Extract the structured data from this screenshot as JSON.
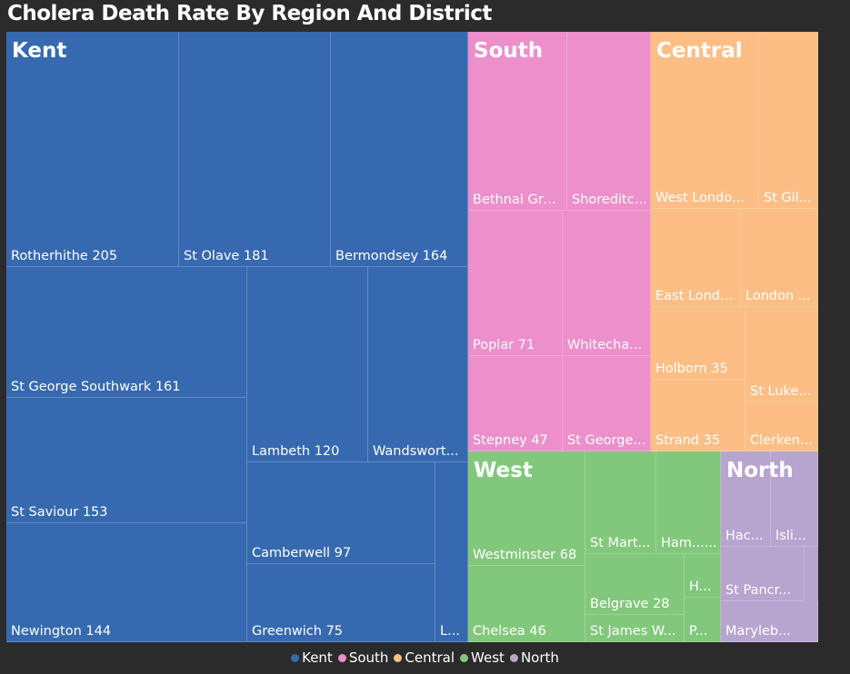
{
  "title": "Cholera Death Rate By Region And District",
  "colors": {
    "Kent": "#3669b0",
    "South": "#ec8fca",
    "Central": "#fdbe85",
    "West": "#82c87c",
    "North": "#b7a4cf"
  },
  "chart_data": {
    "type": "treemap",
    "title": "Cholera Death Rate By Region And District",
    "legend": [
      "Kent",
      "South",
      "Central",
      "West",
      "North"
    ],
    "legend_position": "bottom-center",
    "groups": [
      {
        "name": "Kent",
        "items": [
          {
            "name": "Rotherhithe",
            "value": 205,
            "label": "Rotherhithe 205"
          },
          {
            "name": "St Olave",
            "value": 181,
            "label": "St Olave 181"
          },
          {
            "name": "Bermondsey",
            "value": 164,
            "label": "Bermondsey 164"
          },
          {
            "name": "St George Southwark",
            "value": 161,
            "label": "St George Southwark 161"
          },
          {
            "name": "St Saviour",
            "value": 153,
            "label": "St Saviour 153"
          },
          {
            "name": "Newington",
            "value": 144,
            "label": "Newington 144"
          },
          {
            "name": "Lambeth",
            "value": 120,
            "label": "Lambeth 120"
          },
          {
            "name": "Wandsworth",
            "value": null,
            "label": "Wandswort..."
          },
          {
            "name": "Camberwell",
            "value": 97,
            "label": "Camberwell 97"
          },
          {
            "name": "Greenwich",
            "value": 75,
            "label": "Greenwich 75"
          },
          {
            "name": "Lewisham",
            "value": null,
            "label": "L..."
          }
        ]
      },
      {
        "name": "South",
        "items": [
          {
            "name": "Bethnal Green",
            "value": null,
            "label": "Bethnal Gre..."
          },
          {
            "name": "Shoreditch",
            "value": null,
            "label": "Shoreditc..."
          },
          {
            "name": "Poplar",
            "value": 71,
            "label": "Poplar 71"
          },
          {
            "name": "Whitechapel",
            "value": null,
            "label": "Whitecha..."
          },
          {
            "name": "Stepney",
            "value": 47,
            "label": "Stepney 47"
          },
          {
            "name": "St George in the East",
            "value": null,
            "label": "St George..."
          }
        ]
      },
      {
        "name": "Central",
        "items": [
          {
            "name": "West London",
            "value": null,
            "label": "West Londo..."
          },
          {
            "name": "St Giles",
            "value": null,
            "label": "St Gil..."
          },
          {
            "name": "East London",
            "value": null,
            "label": "East Lond..."
          },
          {
            "name": "London City",
            "value": null,
            "label": "London ..."
          },
          {
            "name": "Holborn",
            "value": 35,
            "label": "Holborn 35"
          },
          {
            "name": "St Luke",
            "value": null,
            "label": "St Luke..."
          },
          {
            "name": "Strand",
            "value": 35,
            "label": "Strand 35"
          },
          {
            "name": "Clerkenwell",
            "value": null,
            "label": "Clerken..."
          }
        ]
      },
      {
        "name": "West",
        "items": [
          {
            "name": "Westminster",
            "value": 68,
            "label": "Westminster 68"
          },
          {
            "name": "St Martin",
            "value": null,
            "label": "St Mart..."
          },
          {
            "name": "Hammersmith",
            "value": null,
            "label": "Ham......"
          },
          {
            "name": "Chelsea",
            "value": 46,
            "label": "Chelsea 46"
          },
          {
            "name": "Belgrave",
            "value": 28,
            "label": "Belgrave 28"
          },
          {
            "name": "Hampstead",
            "value": null,
            "label": "H..."
          },
          {
            "name": "St James Westminster",
            "value": null,
            "label": "St James W..."
          },
          {
            "name": "Paddington",
            "value": null,
            "label": "P..."
          }
        ]
      },
      {
        "name": "North",
        "items": [
          {
            "name": "Hackney",
            "value": null,
            "label": "Hac..."
          },
          {
            "name": "Islington",
            "value": null,
            "label": "Isli..."
          },
          {
            "name": "St Pancras",
            "value": null,
            "label": "St Pancr..."
          },
          {
            "name": "Marylebone",
            "value": null,
            "label": "Maryleb..."
          }
        ]
      }
    ]
  }
}
